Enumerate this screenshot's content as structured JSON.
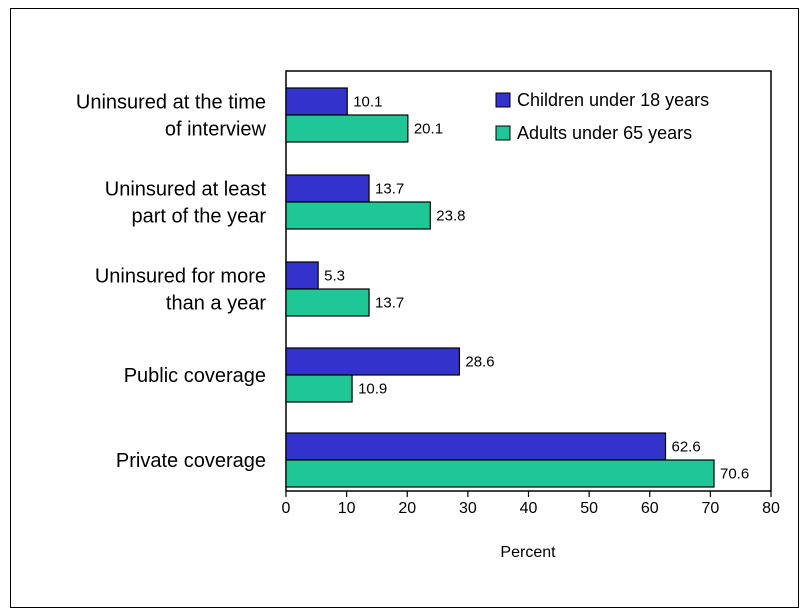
{
  "chart_data": {
    "type": "bar",
    "orientation": "horizontal",
    "categories": [
      [
        "Uninsured at the time",
        "of interview"
      ],
      [
        "Uninsured at least",
        "part of the year"
      ],
      [
        "Uninsured for more",
        "than a year"
      ],
      [
        "Public coverage"
      ],
      [
        "Private coverage"
      ]
    ],
    "series": [
      {
        "name": "Children under 18 years",
        "color": "#3333CC",
        "values": [
          10.1,
          13.7,
          5.3,
          28.6,
          62.6
        ],
        "labels": [
          "10.1",
          "13.7",
          "5.3",
          "28.6",
          "62.6"
        ]
      },
      {
        "name": "Adults under 65 years",
        "color": "#1FC796",
        "values": [
          20.1,
          23.8,
          13.7,
          10.9,
          70.6
        ],
        "labels": [
          "20.1",
          "23.8",
          "13.7",
          "10.9",
          "70.6"
        ]
      }
    ],
    "xlabel": "Percent",
    "ylabel": "",
    "xlim": [
      0,
      80
    ],
    "xticks": [
      "0",
      "10",
      "20",
      "30",
      "40",
      "50",
      "60",
      "70",
      "80"
    ],
    "grid": false,
    "legend_position": "top-right"
  }
}
